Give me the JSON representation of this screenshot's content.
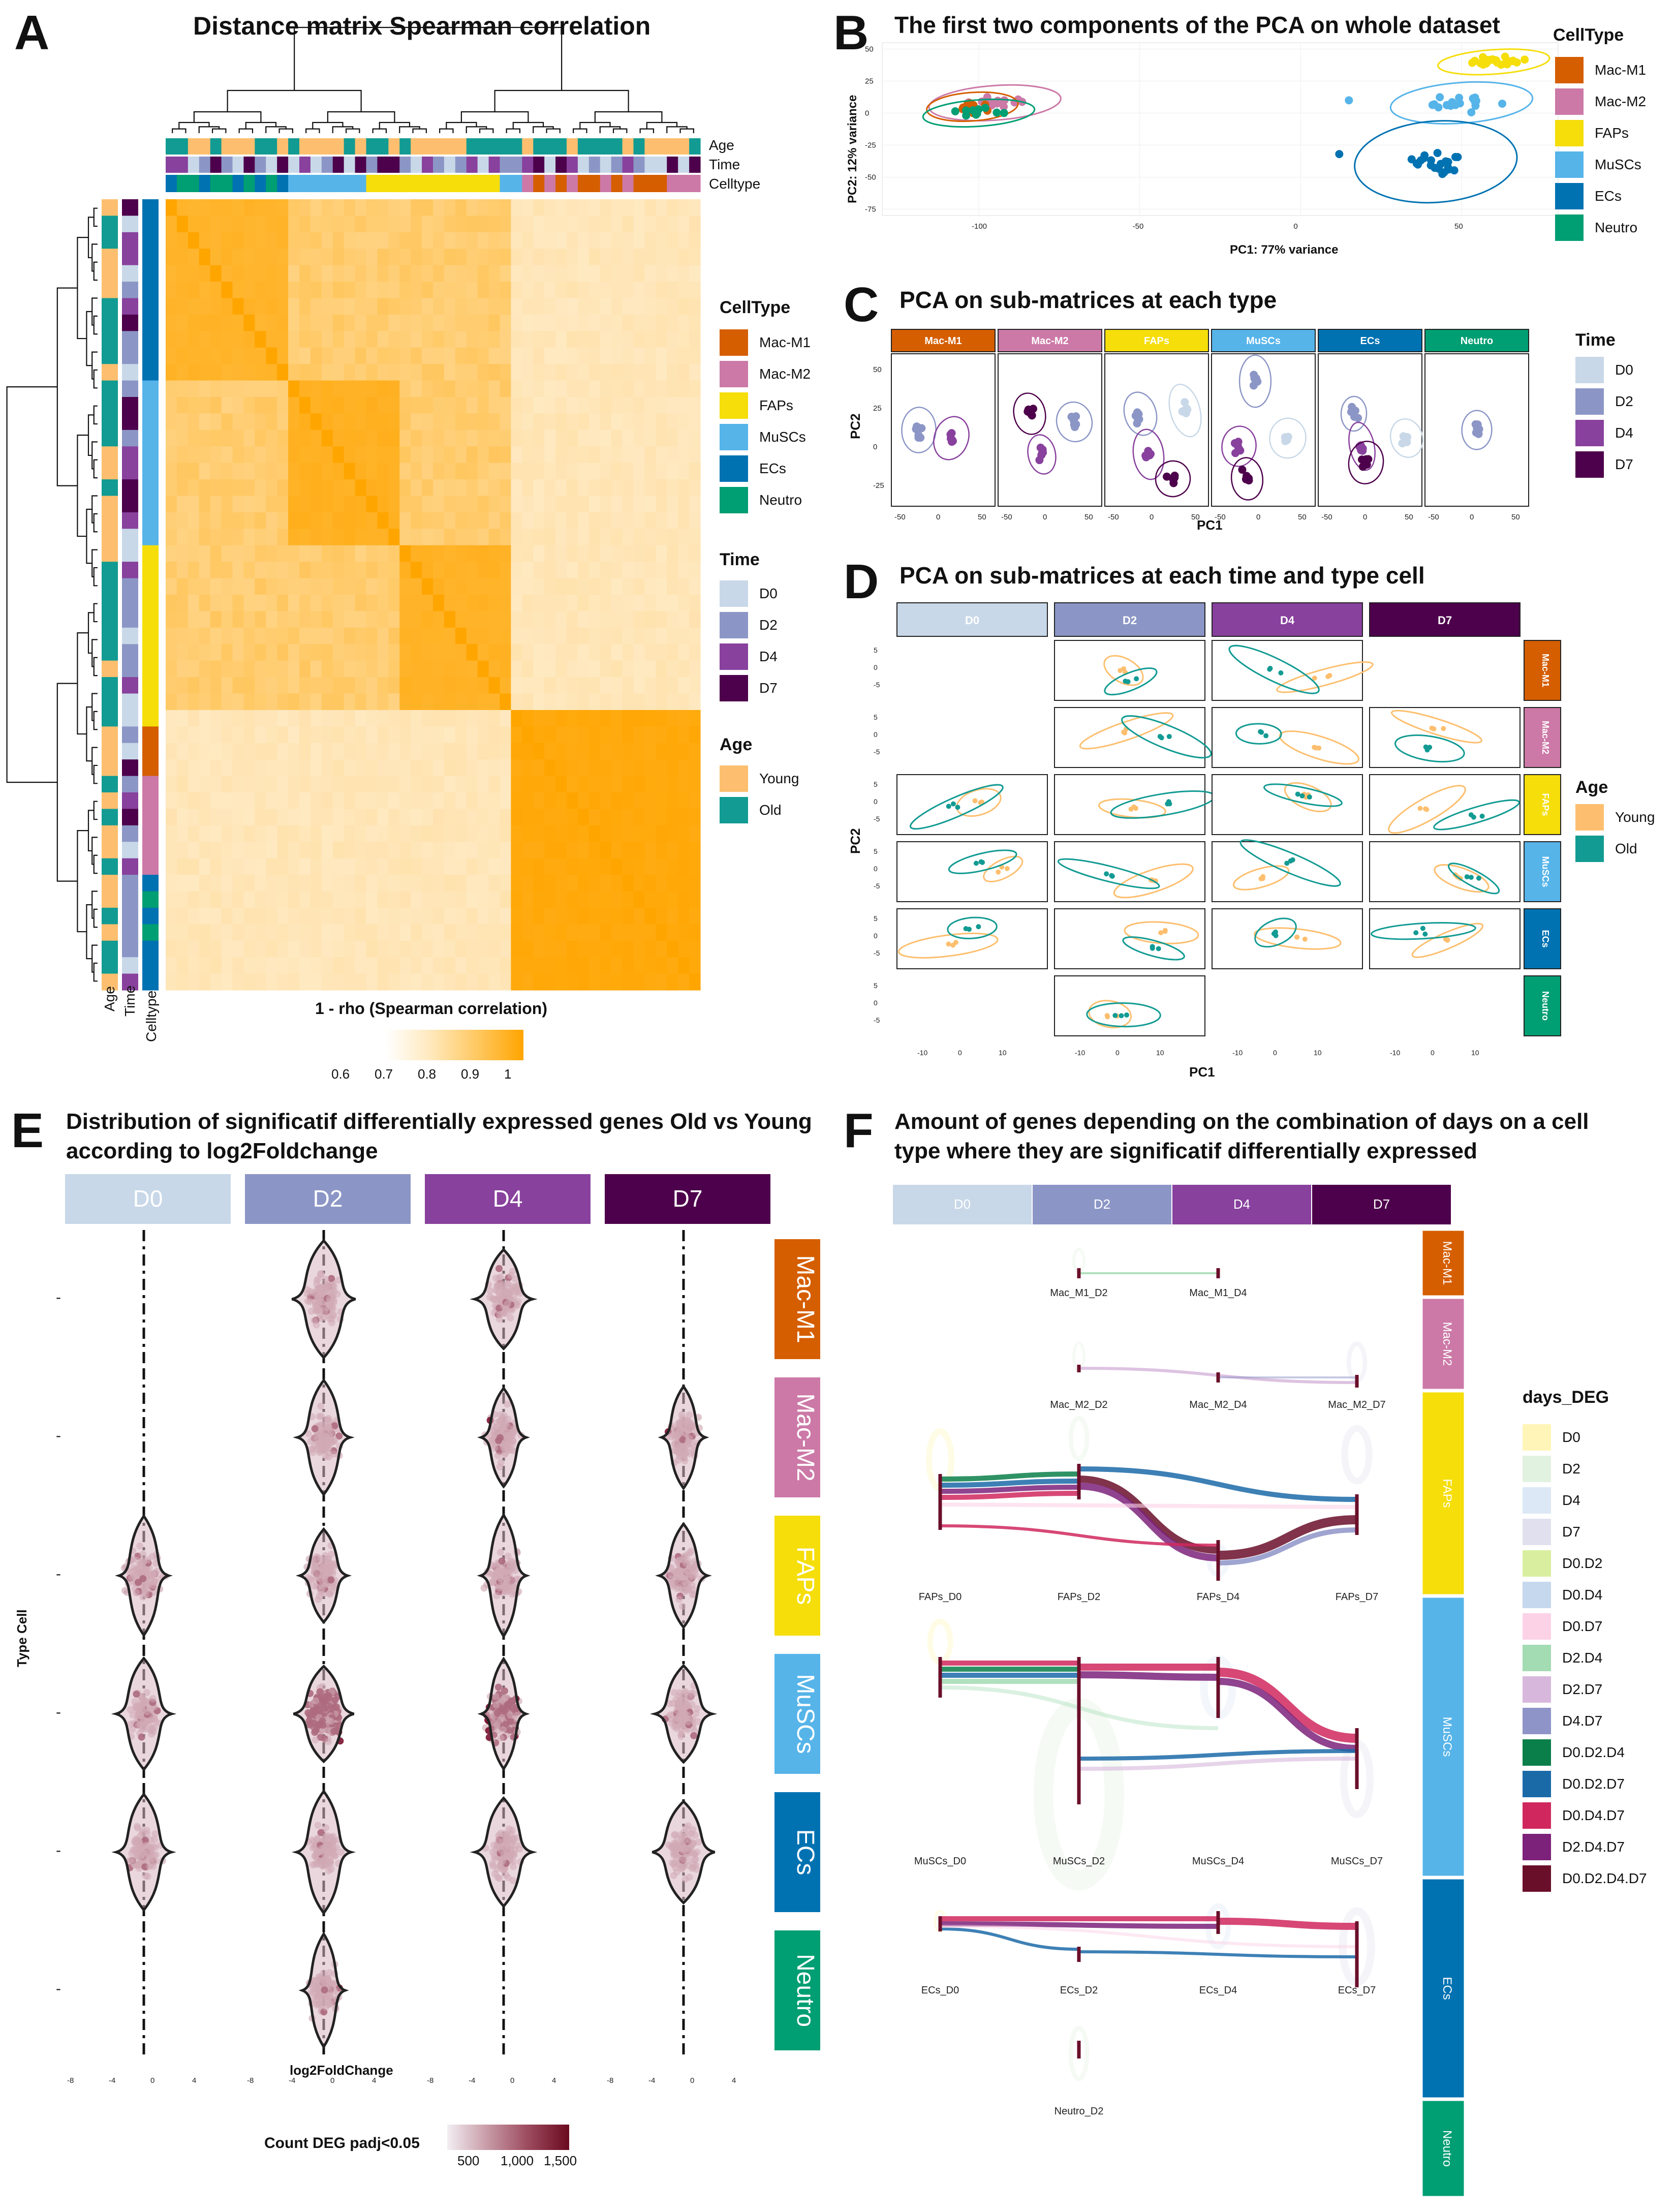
{
  "colors": {
    "Mac-M1": "#d55e00",
    "Mac-M2": "#cc79a7",
    "FAPs": "#f5de0a",
    "MuSCs": "#56b4e9",
    "ECs": "#0072b2",
    "Neutro": "#009e73",
    "D0": "#c8d8e8",
    "D2": "#8c96c6",
    "D4": "#88419d",
    "D7": "#4d004b",
    "Young": "#fdbf6f",
    "Old": "#129b93",
    "heat_hi": "#ffa500",
    "heat_lo": "#fff8ec"
  },
  "panelA": {
    "letter": "A",
    "title": "Distance matrix Spearman correlation",
    "annot_labels": [
      "Age",
      "Time",
      "Celltype"
    ],
    "colorbar_label": "1 - rho (Spearman correlation)",
    "colorbar_ticks": [
      "0.6",
      "0.7",
      "0.8",
      "0.9",
      "1"
    ],
    "legend_celltype_title": "CellType",
    "legend_time_title": "Time",
    "legend_age_title": "Age"
  },
  "celltypes": [
    "Mac-M1",
    "Mac-M2",
    "FAPs",
    "MuSCs",
    "ECs",
    "Neutro"
  ],
  "times": [
    "D0",
    "D2",
    "D4",
    "D7"
  ],
  "ages": [
    "Young",
    "Old"
  ],
  "panelB": {
    "letter": "B",
    "title": "The first two components of the PCA on whole dataset",
    "xlabel": "PC1: 77% variance",
    "ylabel": "PC2: 12% variance",
    "xticks": [
      "-100",
      "-50",
      "0",
      "50"
    ],
    "yticks": [
      "50",
      "25",
      "0",
      "-25",
      "-50",
      "-75"
    ],
    "legend_title": "CellType"
  },
  "panelC": {
    "letter": "C",
    "title": "PCA on sub-matrices at each type",
    "xlabel": "PC1",
    "ylabel": "PC2",
    "yticks": [
      "50",
      "25",
      "0",
      "-25"
    ],
    "xticks": [
      "-50",
      "0",
      "50"
    ],
    "legend_title": "Time"
  },
  "panelD": {
    "letter": "D",
    "title": "PCA on sub-matrices at each time and type cell",
    "xlabel": "PC1",
    "ylabel": "PC2",
    "yticks": [
      "5",
      "0",
      "-5"
    ],
    "xticks": [
      "-10",
      "0",
      "10"
    ],
    "legend_title": "Age"
  },
  "panelE": {
    "letter": "E",
    "title_line1": "Distribution of significatif differentially expressed genes Old vs Young",
    "title_line2": " according to log2Foldchange",
    "xlabel": "log2FoldChange",
    "ylabel": "Type Cell",
    "xticks": [
      "-8",
      "-4",
      "0",
      "4"
    ],
    "colorbar_title": "Count DEG padj<0.05",
    "colorbar_ticks": [
      "500",
      "1,000",
      "1,500"
    ]
  },
  "panelF": {
    "letter": "F",
    "title_line1": "Amount of genes depending on the combination of days on a cell",
    "title_line2": "type where they are significatif differentially expressed",
    "legend_title": "days_DEG",
    "legend": [
      {
        "label": "D0",
        "color": "#fff5b8"
      },
      {
        "label": "D2",
        "color": "#e2f2e0"
      },
      {
        "label": "D4",
        "color": "#dce8f5"
      },
      {
        "label": "D7",
        "color": "#e0e0ef"
      },
      {
        "label": "D0.D2",
        "color": "#d9ef9f"
      },
      {
        "label": "D0.D4",
        "color": "#c6d8ee"
      },
      {
        "label": "D0.D7",
        "color": "#fcd2e6"
      },
      {
        "label": "D2.D4",
        "color": "#a3dbb3"
      },
      {
        "label": "D2.D7",
        "color": "#d7b8dc"
      },
      {
        "label": "D4.D7",
        "color": "#8e94c8"
      },
      {
        "label": "D0.D2.D4",
        "color": "#0b7f4a"
      },
      {
        "label": "D0.D2.D7",
        "color": "#1b6aa8"
      },
      {
        "label": "D0.D4.D7",
        "color": "#d0285e"
      },
      {
        "label": "D2.D4.D7",
        "color": "#7d227a"
      },
      {
        "label": "D0.D2.D4.D7",
        "color": "#6a0f2a"
      }
    ],
    "nodes": {
      "mac1_d2": "Mac_M1_D2",
      "mac1_d4": "Mac_M1_D4",
      "mac2_d2": "Mac_M2_D2",
      "mac2_d4": "Mac_M2_D4",
      "mac2_d7": "Mac_M2_D7",
      "faps_d0": "FAPs_D0",
      "faps_d2": "FAPs_D2",
      "faps_d4": "FAPs_D4",
      "faps_d7": "FAPs_D7",
      "muscs_d0": "MuSCs_D0",
      "muscs_d2": "MuSCs_D2",
      "muscs_d4": "MuSCs_D4",
      "muscs_d7": "MuSCs_D7",
      "ecs_d0": "ECs_D0",
      "ecs_d2": "ECs_D2",
      "ecs_d4": "ECs_D4",
      "ecs_d7": "ECs_D7",
      "neutro_d2": "Neutro_D2"
    }
  }
}
